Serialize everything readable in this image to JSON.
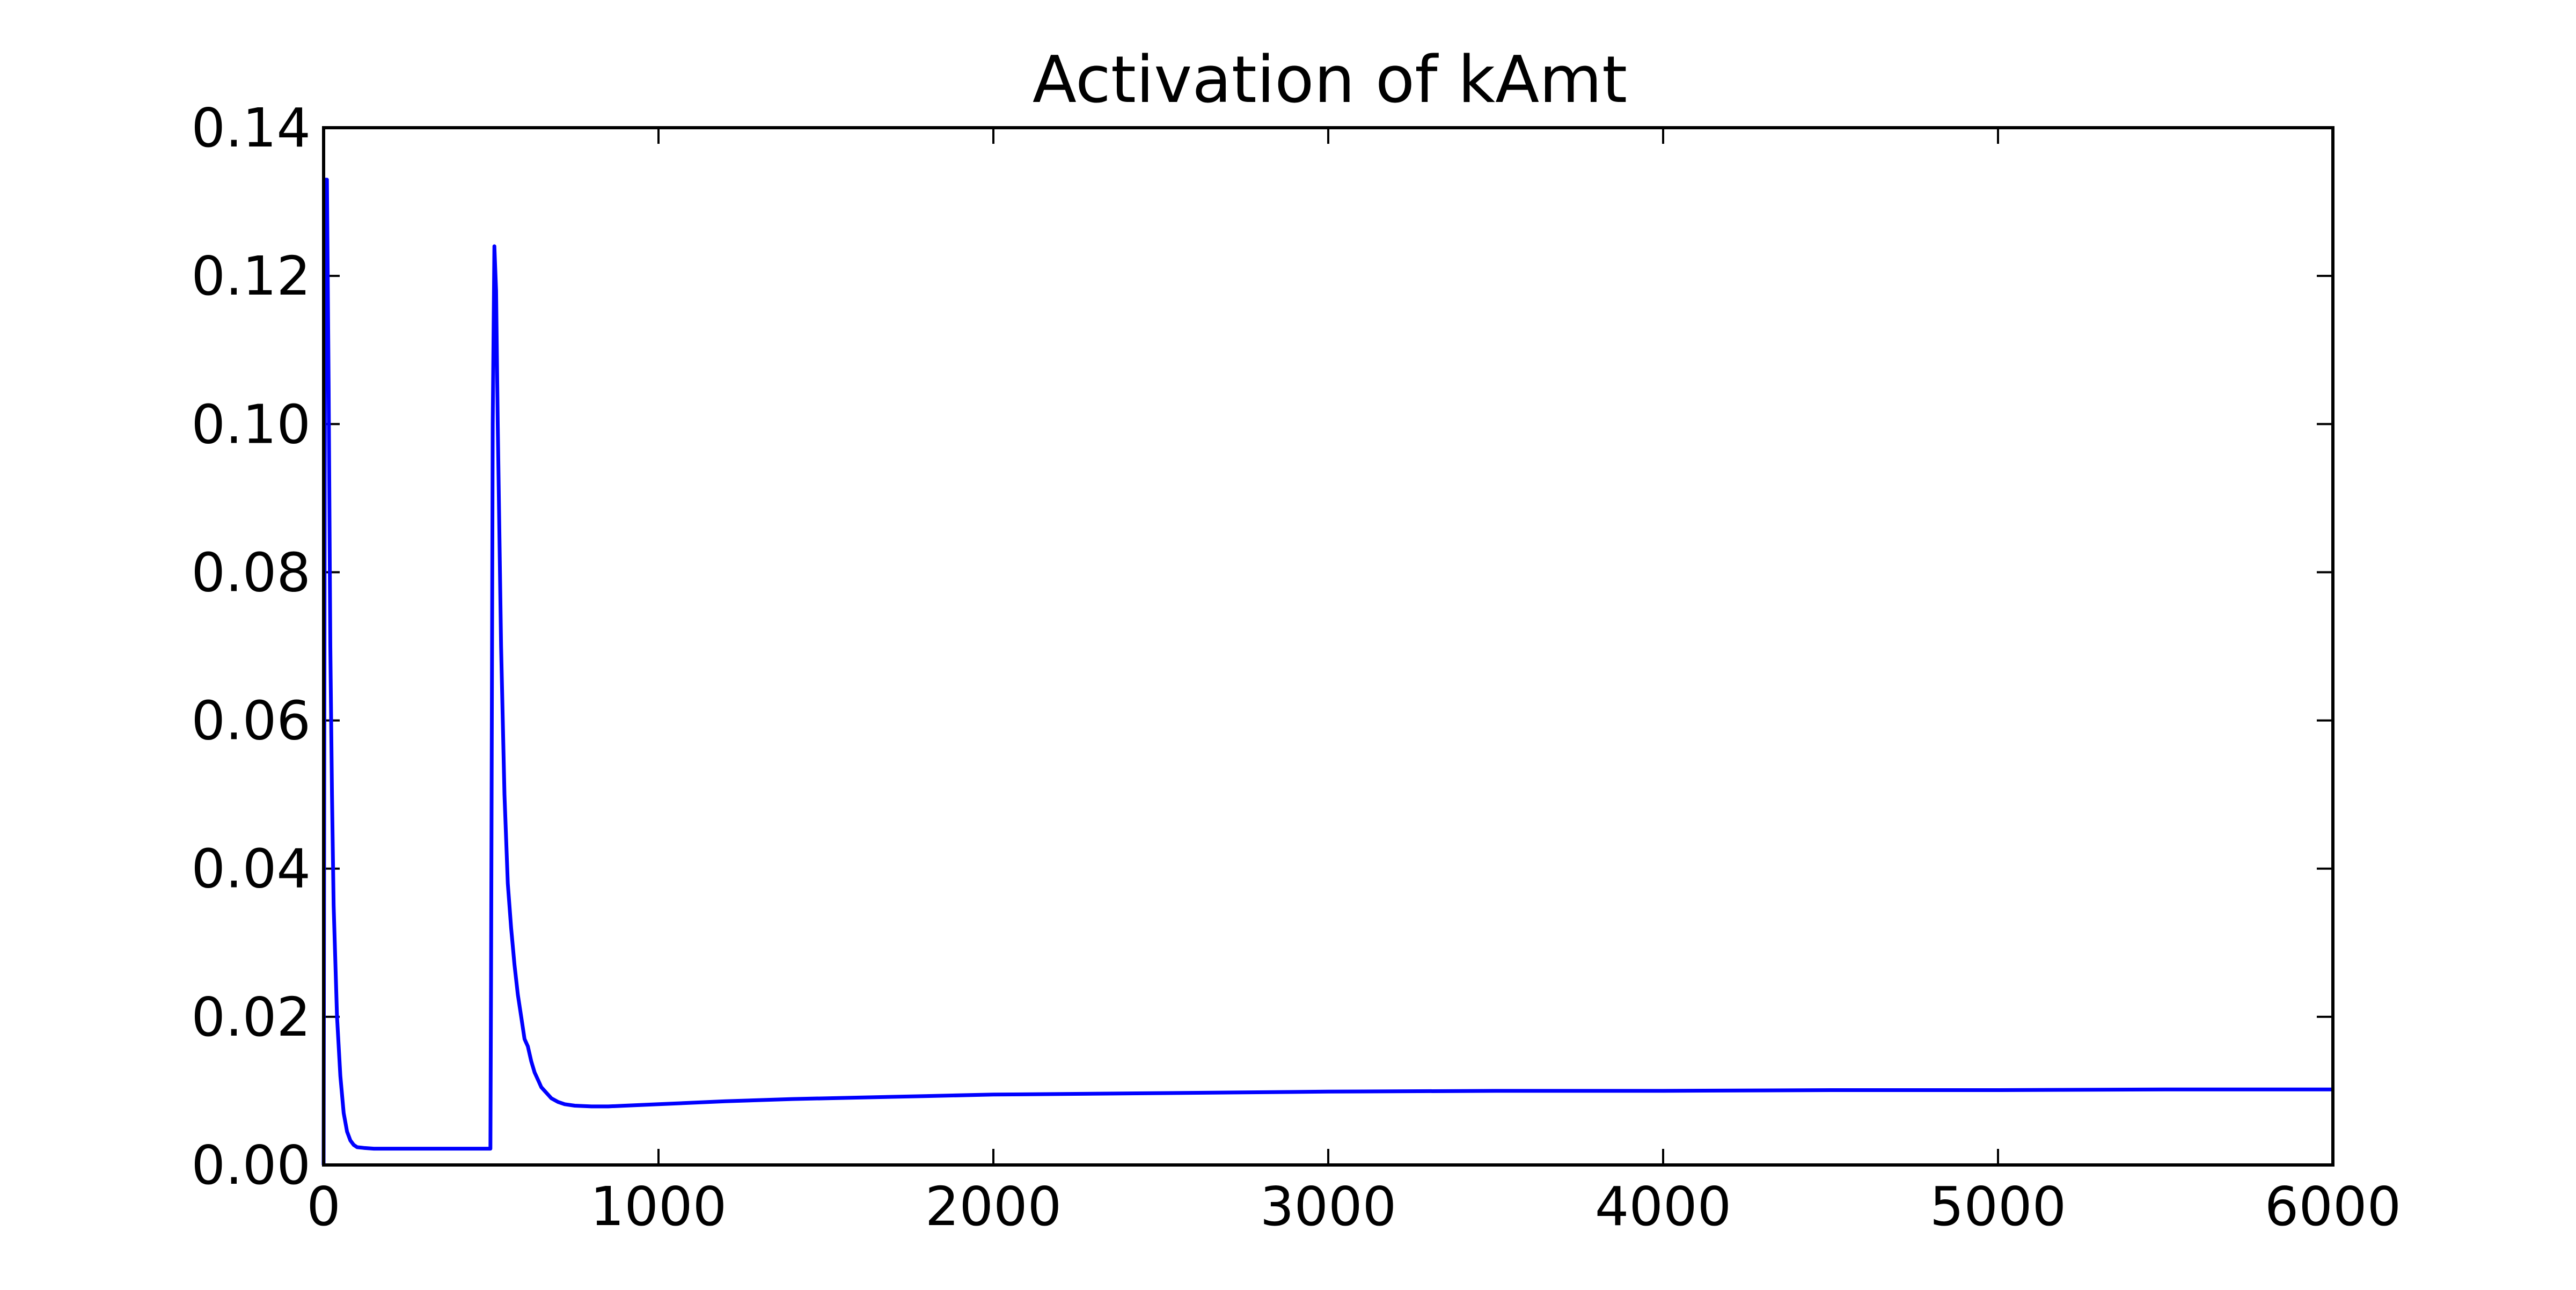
{
  "chart_data": {
    "type": "line",
    "title": "Activation of kAmt",
    "xlabel": "",
    "ylabel": "",
    "xlim": [
      0,
      6000
    ],
    "ylim": [
      0,
      0.14
    ],
    "x_ticks": [
      0,
      1000,
      2000,
      3000,
      4000,
      5000,
      6000
    ],
    "x_tick_labels": [
      "0",
      "1000",
      "2000",
      "3000",
      "4000",
      "5000",
      "6000"
    ],
    "y_ticks": [
      0.0,
      0.02,
      0.04,
      0.06,
      0.08,
      0.1,
      0.12,
      0.14
    ],
    "y_tick_labels": [
      "0.00",
      "0.02",
      "0.04",
      "0.06",
      "0.08",
      "0.10",
      "0.12",
      "0.14"
    ],
    "grid": false,
    "legend": "none",
    "series": [
      {
        "color": "#0000ff",
        "x": [
          0,
          5,
          10,
          15,
          20,
          25,
          30,
          40,
          50,
          60,
          70,
          80,
          90,
          100,
          120,
          150,
          200,
          300,
          400,
          498,
          500,
          505,
          510,
          515,
          520,
          530,
          540,
          550,
          560,
          570,
          580,
          590,
          600,
          610,
          620,
          630,
          640,
          650,
          660,
          670,
          680,
          700,
          720,
          750,
          800,
          850,
          900,
          1000,
          1100,
          1200,
          1400,
          1600,
          1800,
          2000,
          2500,
          3000,
          3500,
          4000,
          4500,
          5000,
          5500,
          6000
        ],
        "y": [
          0.0,
          0.133,
          0.133,
          0.105,
          0.07,
          0.05,
          0.035,
          0.02,
          0.012,
          0.007,
          0.0045,
          0.0033,
          0.0027,
          0.0024,
          0.0023,
          0.0022,
          0.0022,
          0.0022,
          0.0022,
          0.0022,
          0.025,
          0.1,
          0.124,
          0.118,
          0.1,
          0.07,
          0.05,
          0.038,
          0.032,
          0.027,
          0.023,
          0.02,
          0.017,
          0.016,
          0.014,
          0.0125,
          0.0115,
          0.0105,
          0.01,
          0.0095,
          0.009,
          0.0085,
          0.0082,
          0.008,
          0.0079,
          0.0079,
          0.008,
          0.0082,
          0.0084,
          0.0086,
          0.0089,
          0.0091,
          0.0093,
          0.0095,
          0.0097,
          0.0099,
          0.01,
          0.01,
          0.0101,
          0.0101,
          0.0102,
          0.0102
        ]
      }
    ]
  }
}
